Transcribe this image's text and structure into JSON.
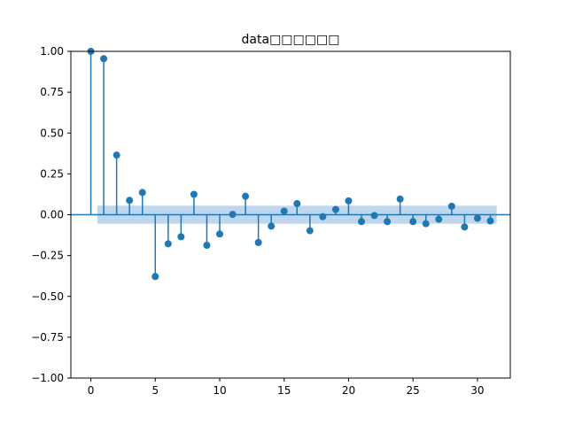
{
  "chart_data": {
    "type": "stem",
    "title": "data□□□□□□",
    "xlabel": "",
    "ylabel": "",
    "xlim": [
      -1.55,
      32.55
    ],
    "ylim": [
      -1.0,
      1.0
    ],
    "x_ticks": [
      0,
      5,
      10,
      15,
      20,
      25,
      30
    ],
    "y_ticks": [
      -1.0,
      -0.75,
      -0.5,
      -0.25,
      0.0,
      0.25,
      0.5,
      0.75,
      1.0
    ],
    "y_tick_labels": [
      "−1.00",
      "−0.75",
      "−0.50",
      "−0.25",
      "0.00",
      "0.25",
      "0.50",
      "0.75",
      "1.00"
    ],
    "grid": false,
    "lags": [
      0,
      1,
      2,
      3,
      4,
      5,
      6,
      7,
      8,
      9,
      10,
      11,
      12,
      13,
      14,
      15,
      16,
      17,
      18,
      19,
      20,
      21,
      22,
      23,
      24,
      25,
      26,
      27,
      28,
      29,
      30,
      31
    ],
    "values": [
      1.0,
      0.955,
      0.365,
      0.088,
      0.136,
      -0.378,
      -0.178,
      -0.135,
      0.125,
      -0.187,
      -0.118,
      0.002,
      0.113,
      -0.17,
      -0.07,
      0.022,
      0.068,
      -0.098,
      -0.012,
      0.032,
      0.085,
      -0.042,
      -0.005,
      -0.042,
      0.096,
      -0.042,
      -0.055,
      -0.028,
      0.052,
      -0.075,
      -0.022,
      -0.038
    ],
    "confidence_band": {
      "x_range": [
        0.5,
        31.5
      ],
      "upper": 0.055,
      "lower": -0.055
    },
    "colors": {
      "stem": "#1f77b4",
      "band": "#a8c8e8",
      "zero_line": "#1f77b4"
    }
  }
}
